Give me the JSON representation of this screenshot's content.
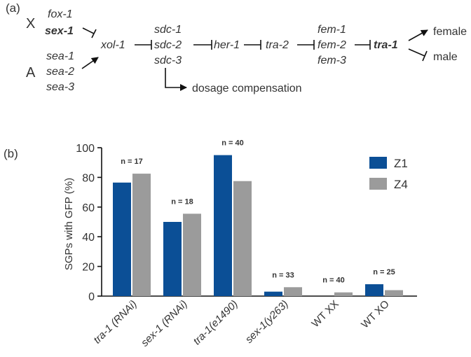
{
  "panel_a": {
    "label": "(a)",
    "chromosome_x": "X",
    "chromosome_a": "A",
    "x_signals": [
      "fox-1",
      "sex-1"
    ],
    "a_signals": [
      "sea-1",
      "sea-2",
      "sea-3"
    ],
    "xol": "xol-1",
    "sdc": [
      "sdc-1",
      "sdc-2",
      "sdc-3"
    ],
    "her": "her-1",
    "tra2": "tra-2",
    "fem": [
      "fem-1",
      "fem-2",
      "fem-3"
    ],
    "tra1": "tra-1",
    "female": "female",
    "male": "male",
    "dosage": "dosage compensation"
  },
  "panel_b": {
    "label": "(b)"
  },
  "chart_data": {
    "type": "bar",
    "ylabel": "SGPs with GFP (%)",
    "xlabel": "",
    "ylim": [
      0,
      100
    ],
    "yticks": [
      0,
      20,
      40,
      60,
      80,
      100
    ],
    "categories": [
      "tra-1 (RNAi)",
      "sex-1 (RNAi)",
      "tra-1(e1490)",
      "sex-1(y263)",
      "WT XX",
      "WT XO"
    ],
    "italic_categories": [
      true,
      true,
      true,
      true,
      false,
      false
    ],
    "series": [
      {
        "name": "Z1",
        "color": "#0b4f96",
        "values": [
          76.5,
          50,
          95,
          3,
          0,
          8
        ]
      },
      {
        "name": "Z4",
        "color": "#9b9b9b",
        "values": [
          82.5,
          55.5,
          77.5,
          6,
          2.5,
          4
        ]
      }
    ],
    "annotations": [
      "n = 17",
      "n = 18",
      "n = 40",
      "n = 33",
      "n = 40",
      "n = 25"
    ],
    "legend_position": "top-right",
    "grid": false
  }
}
